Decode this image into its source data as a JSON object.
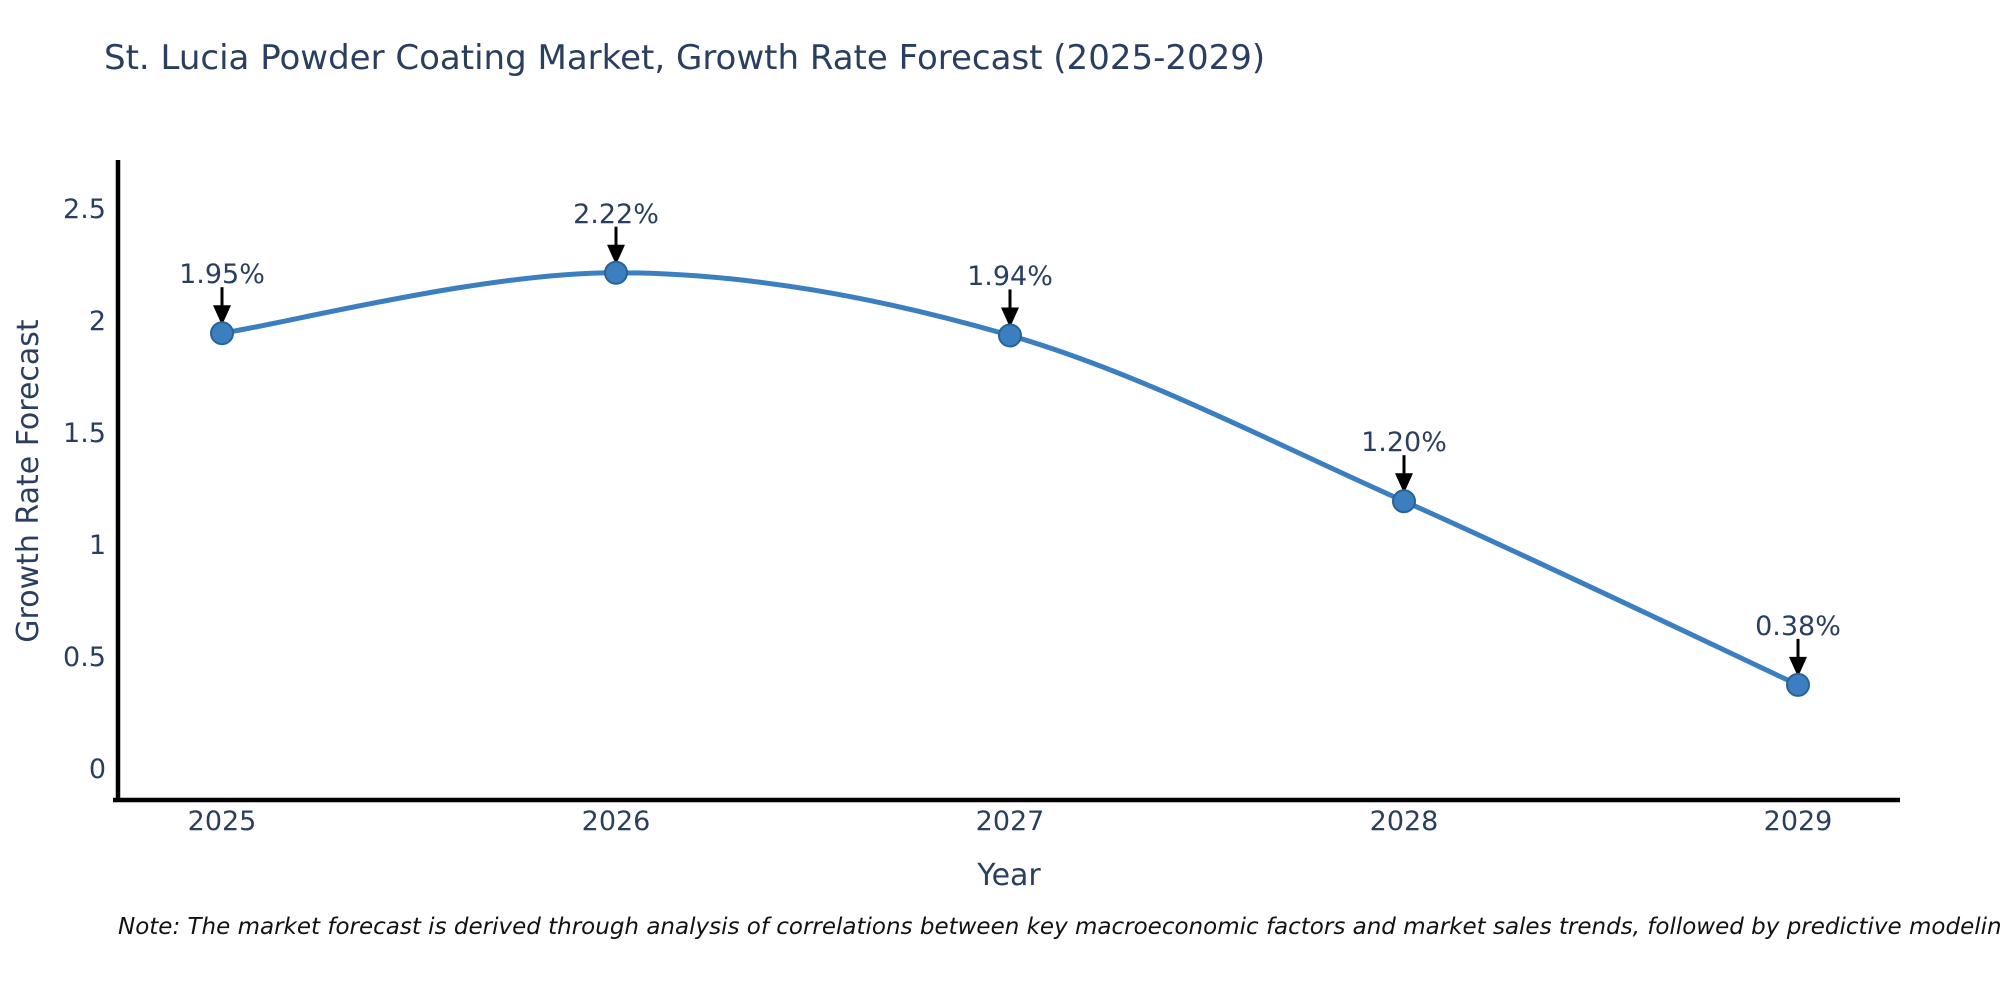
{
  "title": "St. Lucia Powder Coating Market, Growth Rate Forecast (2025-2029)",
  "note": "Note: The market forecast is derived through analysis of correlations between key macroeconomic factors and market sales trends, followed by predictive modeling to project future sales",
  "chart_data": {
    "type": "line",
    "line_shape": "spline",
    "title": "St. Lucia Powder Coating Market, Growth Rate Forecast (2025-2029)",
    "xlabel": "Year",
    "ylabel": "Growth Rate Forecast",
    "categories": [
      "2025",
      "2026",
      "2027",
      "2028",
      "2029"
    ],
    "values": [
      1.95,
      2.22,
      1.94,
      1.2,
      0.38
    ],
    "point_labels": [
      "1.95%",
      "2.22%",
      "1.94%",
      "1.20%",
      "0.38%"
    ],
    "yticks": [
      "2.5",
      "2",
      "1.5",
      "1",
      "0.5",
      "0"
    ],
    "ytick_values": [
      2.5,
      2,
      1.5,
      1,
      0.5,
      0
    ],
    "ylim": [
      -0.13,
      2.73
    ],
    "grid": false,
    "legend": false,
    "markers": true,
    "annotations_arrow": true,
    "colors": {
      "line": "#3b7fc0",
      "marker": "#3b7fc0",
      "marker_edge": "#2b6294",
      "axis": "#000000",
      "arrow": "#000000",
      "text": "#2a3f5f",
      "note_text": "#111111",
      "background": "#ffffff"
    }
  }
}
